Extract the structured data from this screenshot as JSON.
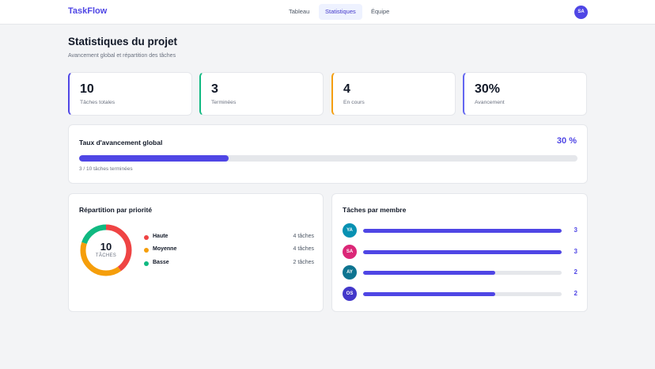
{
  "app": {
    "logo": "TaskFlow"
  },
  "nav": {
    "tabs": [
      {
        "label": "Tableau",
        "active": false
      },
      {
        "label": "Statistiques",
        "active": true
      },
      {
        "label": "Équipe",
        "active": false
      }
    ],
    "user_initials": "SA"
  },
  "header": {
    "title": "Statistiques du projet",
    "subtitle": "Avancement global et répartition des tâches"
  },
  "stats": [
    {
      "value": "10",
      "label": "Tâches totales",
      "accent": "#4f46e5"
    },
    {
      "value": "3",
      "label": "Terminées",
      "accent": "#10b981"
    },
    {
      "value": "4",
      "label": "En cours",
      "accent": "#f59e0b"
    },
    {
      "value": "30%",
      "label": "Avancement",
      "accent": "#6366f1"
    }
  ],
  "progress": {
    "title": "Taux d'avancement global",
    "percent_label": "30 %",
    "fraction": 0.3,
    "caption": "3 / 10 tâches terminées"
  },
  "priority": {
    "title": "Répartition par priorité",
    "total": "10",
    "total_label": "TÂCHES",
    "items": [
      {
        "name": "Haute",
        "count": 4,
        "count_label": "4 tâches",
        "color": "#ef4444"
      },
      {
        "name": "Moyenne",
        "count": 4,
        "count_label": "4 tâches",
        "color": "#f59e0b"
      },
      {
        "name": "Basse",
        "count": 2,
        "count_label": "2 tâches",
        "color": "#10b981"
      }
    ]
  },
  "members": {
    "title": "Tâches par membre",
    "max": 3,
    "items": [
      {
        "initials": "YA",
        "count": 3,
        "count_label": "3",
        "color": "#0891b2"
      },
      {
        "initials": "SA",
        "count": 3,
        "count_label": "3",
        "color": "#db2777"
      },
      {
        "initials": "AY",
        "count": 2,
        "count_label": "2",
        "color": "#0e7490"
      },
      {
        "initials": "OS",
        "count": 2,
        "count_label": "2",
        "color": "#4338ca"
      }
    ]
  }
}
